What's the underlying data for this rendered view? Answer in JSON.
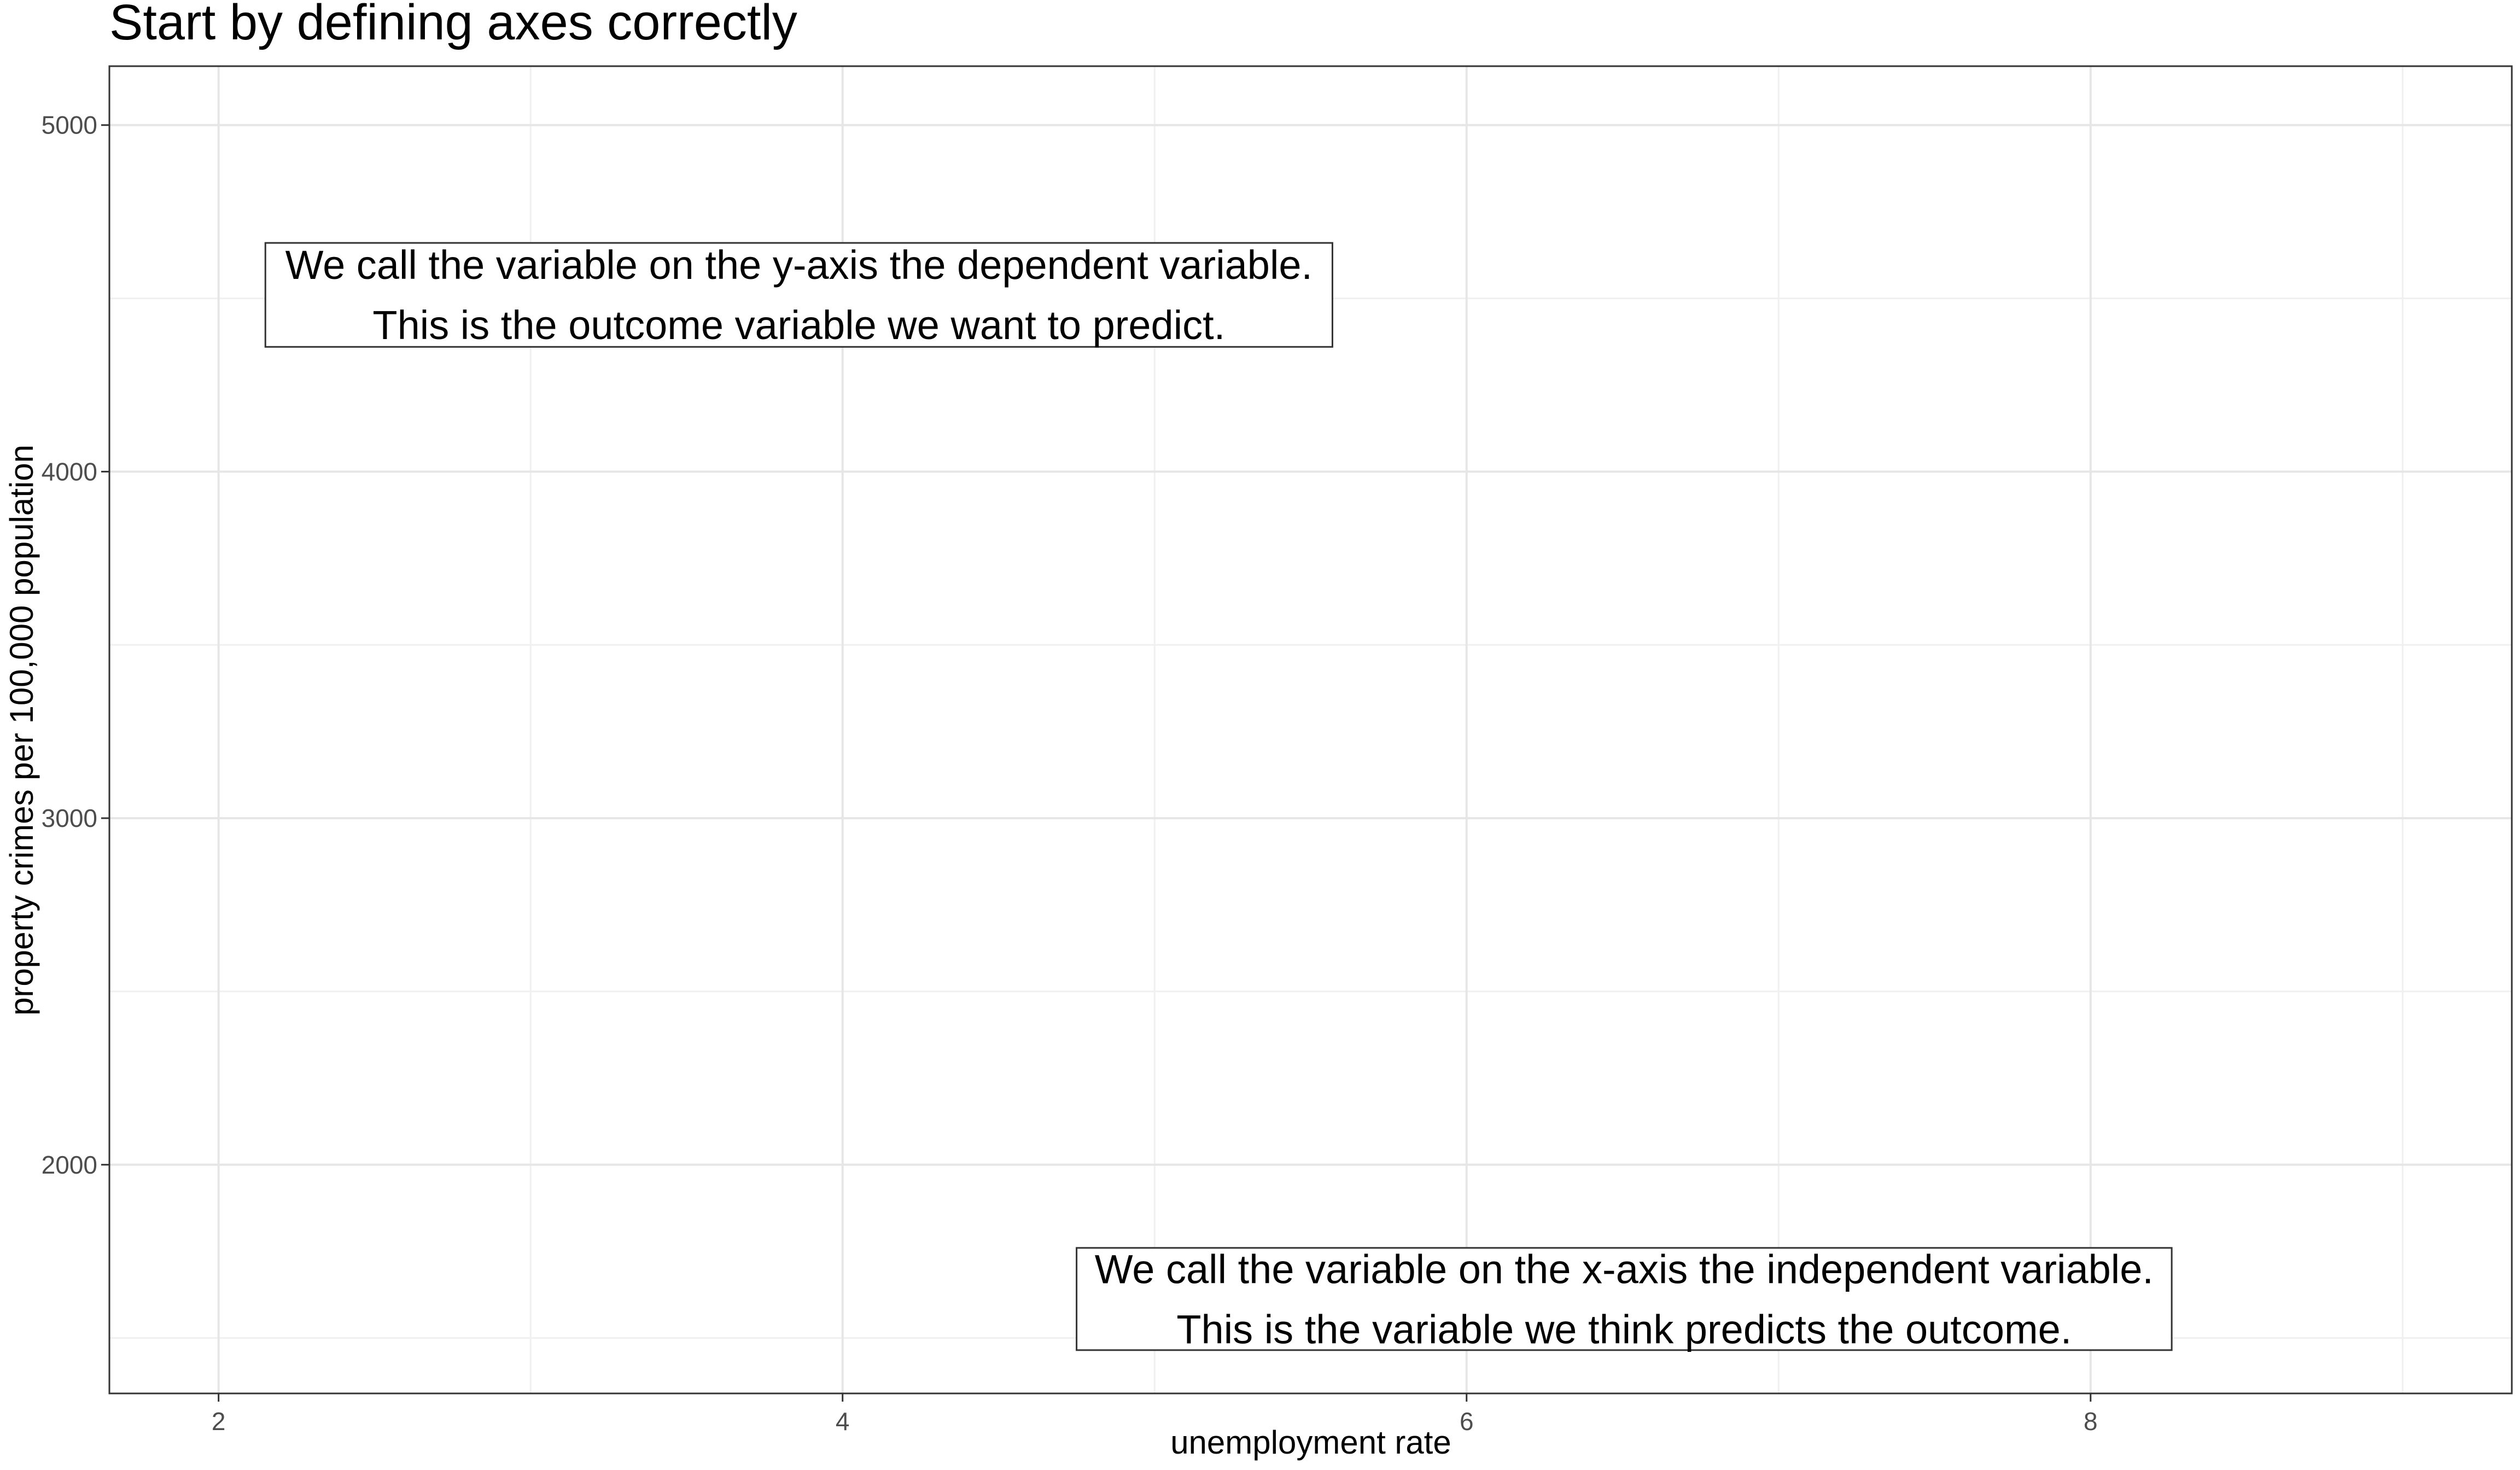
{
  "chart_data": {
    "type": "scatter",
    "title": "Start by defining axes correctly",
    "xlabel": "unemployment rate",
    "ylabel": "property crimes per 100,000 population",
    "xlim": [
      1.65,
      9.35
    ],
    "ylim": [
      1340,
      5170
    ],
    "x_ticks": [
      2,
      4,
      6,
      8
    ],
    "x_tick_labels": [
      "2",
      "4",
      "6",
      "8"
    ],
    "x_minor_gridlines": [
      3,
      5,
      7,
      9
    ],
    "y_ticks": [
      2000,
      3000,
      4000,
      5000
    ],
    "y_tick_labels": [
      "2000",
      "3000",
      "4000",
      "5000"
    ],
    "y_minor_gridlines": [
      1500,
      2500,
      3500,
      4500
    ],
    "grid": true,
    "points": [],
    "annotations": [
      {
        "lines": [
          "We call the variable on the y-axis the dependent variable.",
          "This is the outcome variable we want to predict."
        ],
        "x_range": [
          2.15,
          5.57
        ],
        "y_range": [
          4360,
          4660
        ]
      },
      {
        "lines": [
          "We call the variable on the x-axis the independent variable.",
          "This is the variable we think predicts the outcome."
        ],
        "x_range": [
          4.75,
          8.26
        ],
        "y_range": [
          1465,
          1760
        ]
      }
    ]
  }
}
